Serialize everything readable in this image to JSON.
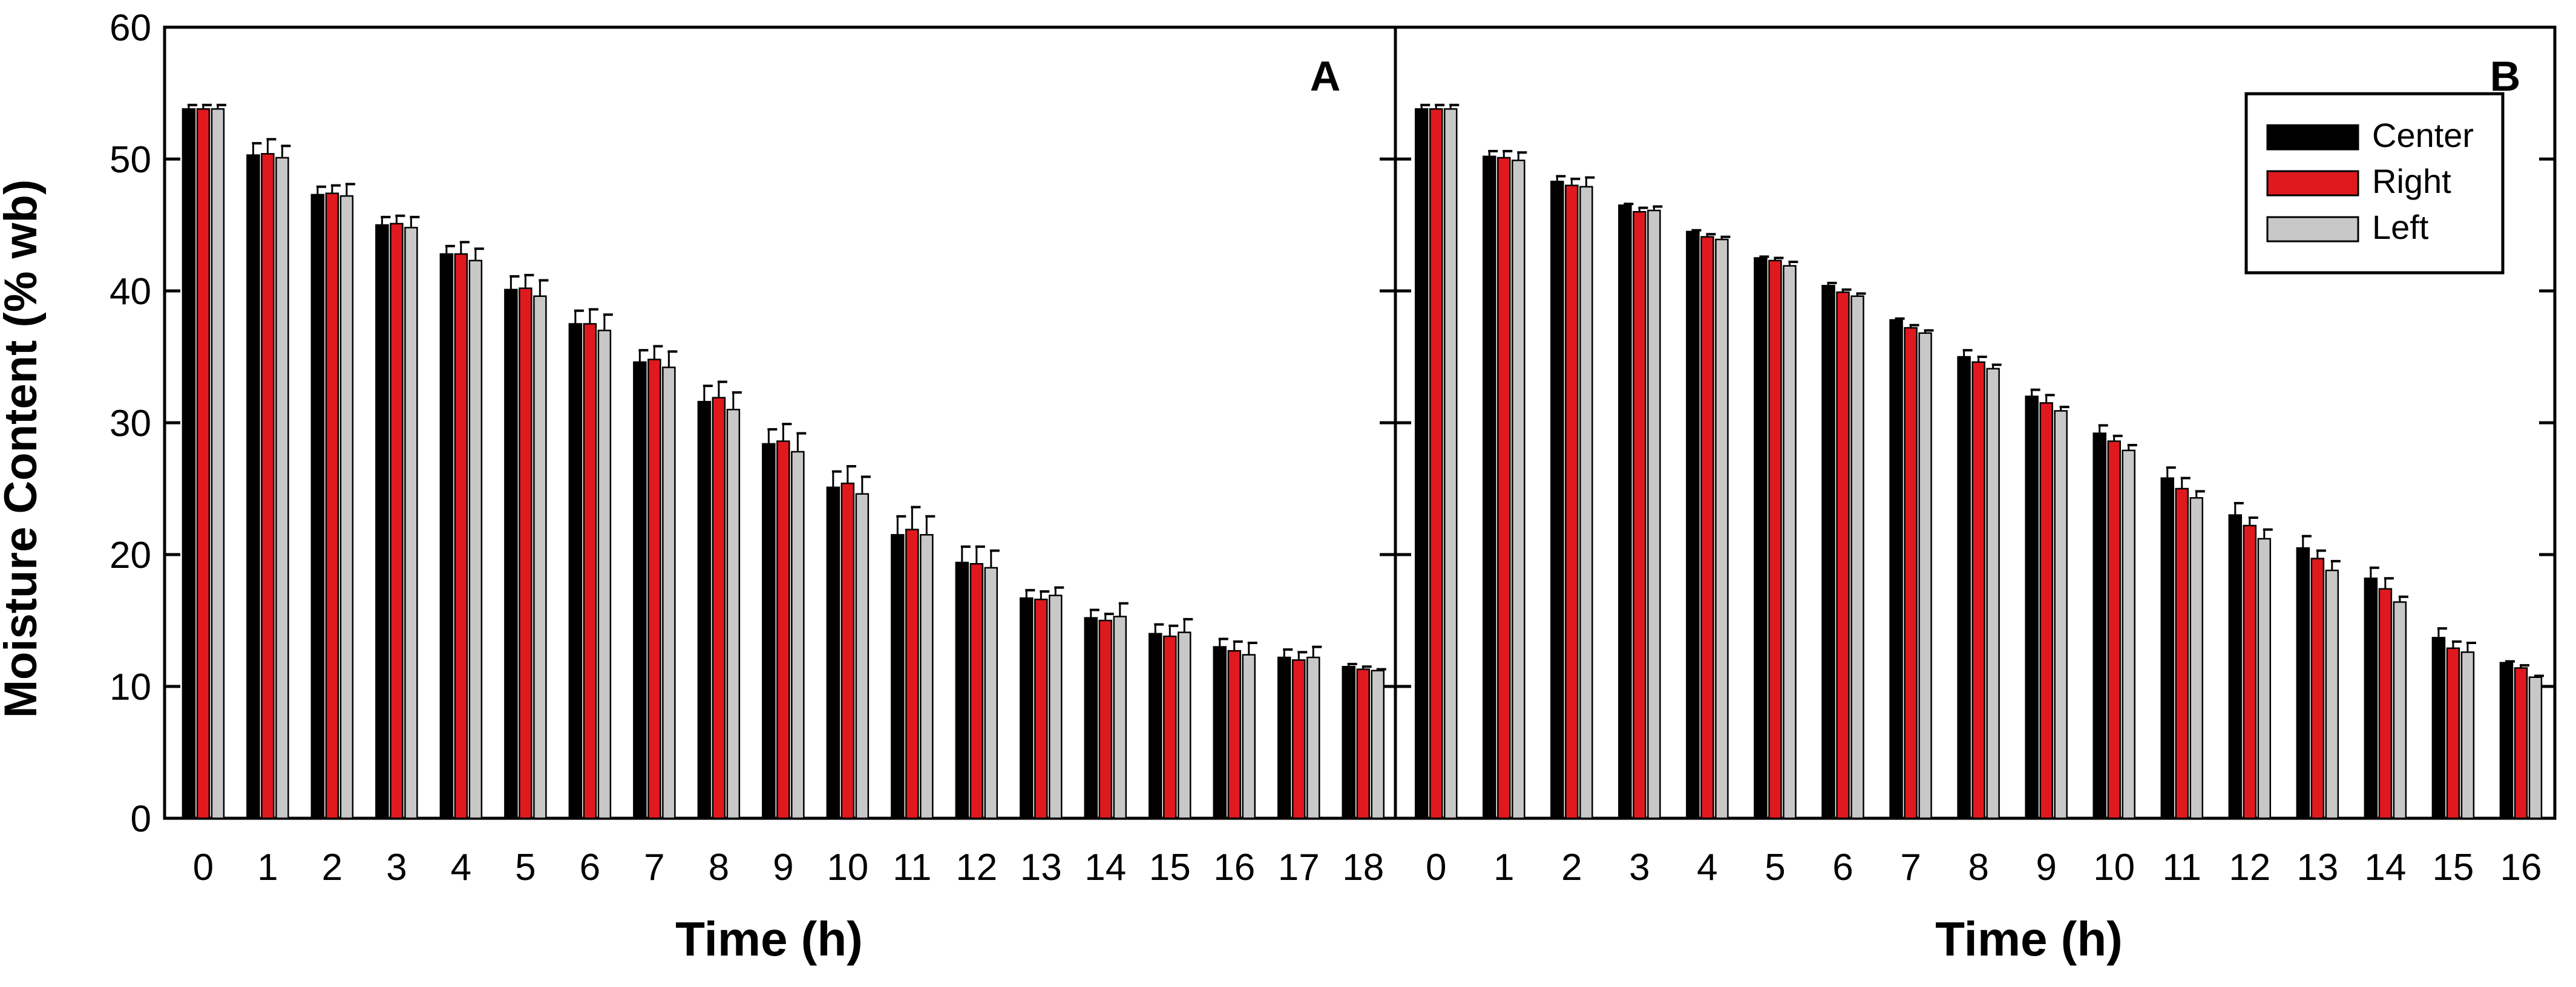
{
  "chart_data": [
    {
      "type": "bar",
      "panel_label": "A",
      "title": "",
      "xlabel": "Time (h)",
      "ylabel": "Moisture Content (% wb)",
      "ylim": [
        0,
        60
      ],
      "yticks": [
        0,
        10,
        20,
        30,
        40,
        50,
        60
      ],
      "categories": [
        "0",
        "1",
        "2",
        "3",
        "4",
        "5",
        "6",
        "7",
        "8",
        "9",
        "10",
        "11",
        "12",
        "13",
        "14",
        "15",
        "16",
        "17",
        "18"
      ],
      "series": [
        {
          "name": "Center",
          "color": "#000000",
          "values": [
            53.8,
            50.3,
            47.3,
            45.0,
            42.8,
            40.1,
            37.5,
            34.6,
            31.6,
            28.4,
            25.1,
            21.5,
            19.4,
            16.7,
            15.2,
            14.0,
            13.0,
            12.2,
            11.5
          ],
          "errors": [
            0.3,
            0.9,
            0.6,
            0.6,
            0.6,
            1.0,
            1.0,
            0.9,
            1.2,
            1.1,
            1.2,
            1.4,
            1.2,
            0.6,
            0.6,
            0.7,
            0.6,
            0.6,
            0.2
          ]
        },
        {
          "name": "Right",
          "color": "#e0191e",
          "values": [
            53.8,
            50.4,
            47.4,
            45.1,
            42.8,
            40.2,
            37.5,
            34.8,
            31.9,
            28.6,
            25.4,
            21.9,
            19.3,
            16.6,
            15.0,
            13.8,
            12.7,
            12.0,
            11.3
          ],
          "errors": [
            0.3,
            1.1,
            0.6,
            0.6,
            0.9,
            1.0,
            1.1,
            1.0,
            1.2,
            1.3,
            1.3,
            1.7,
            1.3,
            0.6,
            0.5,
            0.8,
            0.7,
            0.6,
            0.2
          ]
        },
        {
          "name": "Left",
          "color": "#c8c8c8",
          "values": [
            53.8,
            50.1,
            47.2,
            44.8,
            42.3,
            39.6,
            37.0,
            34.2,
            31.0,
            27.8,
            24.6,
            21.5,
            19.0,
            16.9,
            15.3,
            14.1,
            12.4,
            12.2,
            11.2
          ],
          "errors": [
            0.3,
            0.9,
            0.9,
            0.8,
            0.9,
            1.2,
            1.2,
            1.2,
            1.3,
            1.4,
            1.3,
            1.4,
            1.3,
            0.6,
            1.0,
            1.0,
            0.9,
            0.8,
            0.1
          ]
        }
      ]
    },
    {
      "type": "bar",
      "panel_label": "B",
      "title": "",
      "xlabel": "Time (h)",
      "ylabel": "",
      "ylim": [
        0,
        60
      ],
      "yticks": [
        0,
        10,
        20,
        30,
        40,
        50,
        60
      ],
      "legend": {
        "placement": "top-right",
        "entries": [
          "Center",
          "Right",
          "Left"
        ]
      },
      "categories": [
        "0",
        "1",
        "2",
        "3",
        "4",
        "5",
        "6",
        "7",
        "8",
        "9",
        "10",
        "11",
        "12",
        "13",
        "14",
        "15",
        "16"
      ],
      "series": [
        {
          "name": "Center",
          "color": "#000000",
          "values": [
            53.8,
            50.2,
            48.3,
            46.5,
            44.5,
            42.5,
            40.4,
            37.8,
            35.0,
            32.0,
            29.2,
            25.8,
            23.0,
            20.5,
            18.2,
            13.7,
            11.8
          ],
          "errors": [
            0.3,
            0.4,
            0.4,
            0.1,
            0.1,
            0.1,
            0.2,
            0.1,
            0.5,
            0.5,
            0.6,
            0.8,
            0.9,
            0.9,
            0.8,
            0.7,
            0.1
          ]
        },
        {
          "name": "Right",
          "color": "#e0191e",
          "values": [
            53.8,
            50.1,
            48.0,
            46.0,
            44.1,
            42.3,
            39.9,
            37.2,
            34.6,
            31.5,
            28.6,
            25.0,
            22.2,
            19.7,
            17.4,
            12.9,
            11.4
          ],
          "errors": [
            0.3,
            0.5,
            0.5,
            0.3,
            0.2,
            0.2,
            0.2,
            0.2,
            0.4,
            0.6,
            0.4,
            0.8,
            0.6,
            0.6,
            0.8,
            0.5,
            0.2
          ]
        },
        {
          "name": "Left",
          "color": "#c8c8c8",
          "values": [
            53.8,
            49.9,
            47.9,
            46.1,
            43.9,
            41.9,
            39.6,
            36.8,
            34.1,
            30.9,
            27.9,
            24.3,
            21.2,
            18.8,
            16.4,
            12.6,
            10.7
          ],
          "errors": [
            0.3,
            0.6,
            0.7,
            0.3,
            0.2,
            0.3,
            0.2,
            0.2,
            0.3,
            0.3,
            0.4,
            0.5,
            0.7,
            0.7,
            0.4,
            0.7,
            0.1
          ]
        }
      ]
    }
  ]
}
